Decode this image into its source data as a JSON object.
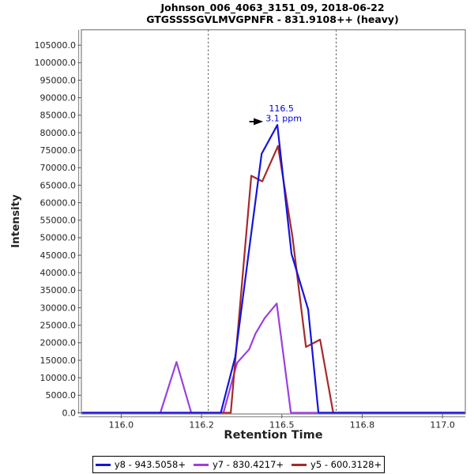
{
  "chart_data": {
    "type": "line",
    "title": "Johnson_006_4063_3151_09, 2018-06-22",
    "subtitle": "GTGSSSSGVLMVGPNFR - 831.9108++ (heavy)",
    "xlabel": "Retention Time",
    "ylabel": "Intensity",
    "xlim": [
      115.876,
      117.071
    ],
    "ylim": [
      0,
      109400
    ],
    "grid": false,
    "legend_position": "bottom",
    "xticks": [
      {
        "value": 116.0,
        "label": "116.0"
      },
      {
        "value": 116.25,
        "label": "116.2"
      },
      {
        "value": 116.5,
        "label": "116.5"
      },
      {
        "value": 116.75,
        "label": "116.8"
      },
      {
        "value": 117.0,
        "label": "117.0"
      }
    ],
    "ytick_values": [
      0,
      5000,
      10000,
      15000,
      20000,
      25000,
      30000,
      35000,
      40000,
      45000,
      50000,
      55000,
      60000,
      65000,
      70000,
      75000,
      80000,
      85000,
      90000,
      95000,
      100000,
      105000
    ],
    "ytick_decimals": 1,
    "peak_boundaries": [
      116.271,
      116.669
    ],
    "annotation": {
      "x": 116.486,
      "y": 82200,
      "rt_label": "116.5",
      "ppm_label": "3.1 ppm",
      "text_color": "#0000dd",
      "arrow_color": "#000000"
    },
    "series": [
      {
        "name": "y8 - 943.5058+",
        "color": "#1414dc",
        "points": [
          [
            115.88,
            0
          ],
          [
            116.31,
            0
          ],
          [
            116.355,
            16000
          ],
          [
            116.395,
            44500
          ],
          [
            116.437,
            74000
          ],
          [
            116.486,
            82200
          ],
          [
            116.53,
            45400
          ],
          [
            116.582,
            29500
          ],
          [
            116.614,
            0
          ],
          [
            117.07,
            0
          ]
        ]
      },
      {
        "name": "y7 - 830.4217+",
        "color": "#9b40e0",
        "points": [
          [
            115.88,
            0
          ],
          [
            116.122,
            0
          ],
          [
            116.172,
            14500
          ],
          [
            116.218,
            0
          ],
          [
            116.318,
            0
          ],
          [
            116.361,
            14300
          ],
          [
            116.398,
            18100
          ],
          [
            116.418,
            22600
          ],
          [
            116.447,
            27100
          ],
          [
            116.484,
            31200
          ],
          [
            116.528,
            0
          ],
          [
            117.07,
            0
          ]
        ]
      },
      {
        "name": "y5 - 600.3128+",
        "color": "#a52a2a",
        "points": [
          [
            115.88,
            0
          ],
          [
            116.341,
            0
          ],
          [
            116.405,
            67700
          ],
          [
            116.439,
            66100
          ],
          [
            116.488,
            76200
          ],
          [
            116.533,
            50300
          ],
          [
            116.575,
            18800
          ],
          [
            116.619,
            20900
          ],
          [
            116.66,
            0
          ],
          [
            117.07,
            0
          ]
        ]
      }
    ],
    "frame_color": "#808080",
    "tick_text_color": "#222222"
  }
}
